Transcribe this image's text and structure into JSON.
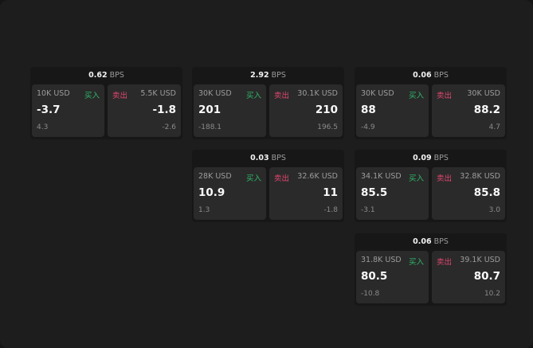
{
  "unit_label": "BPS",
  "buy_label": "买入",
  "sell_label": "卖出",
  "colors": {
    "buy": "#2fb86a",
    "sell": "#e0466f"
  },
  "widgets": [
    {
      "spread": "0.62",
      "buy": {
        "amount": "10K USD",
        "price": "-3.7",
        "change": "4.3"
      },
      "sell": {
        "amount": "5.5K USD",
        "price": "-1.8",
        "change": "-2.6"
      }
    },
    {
      "spread": "2.92",
      "buy": {
        "amount": "30K USD",
        "price": "201",
        "change": "-188.1"
      },
      "sell": {
        "amount": "30.1K USD",
        "price": "210",
        "change": "196.5"
      }
    },
    {
      "spread": "0.06",
      "buy": {
        "amount": "30K USD",
        "price": "88",
        "change": "-4.9"
      },
      "sell": {
        "amount": "30K USD",
        "price": "88.2",
        "change": "4.7"
      }
    },
    {
      "spread": "0.03",
      "buy": {
        "amount": "28K USD",
        "price": "10.9",
        "change": "1.3"
      },
      "sell": {
        "amount": "32.6K USD",
        "price": "11",
        "change": "-1.8"
      }
    },
    {
      "spread": "0.09",
      "buy": {
        "amount": "34.1K USD",
        "price": "85.5",
        "change": "-3.1"
      },
      "sell": {
        "amount": "32.8K USD",
        "price": "85.8",
        "change": "3.0"
      }
    },
    {
      "spread": "0.06",
      "buy": {
        "amount": "31.8K USD",
        "price": "80.5",
        "change": "-10.8"
      },
      "sell": {
        "amount": "39.1K USD",
        "price": "80.7",
        "change": "10.2"
      }
    }
  ]
}
